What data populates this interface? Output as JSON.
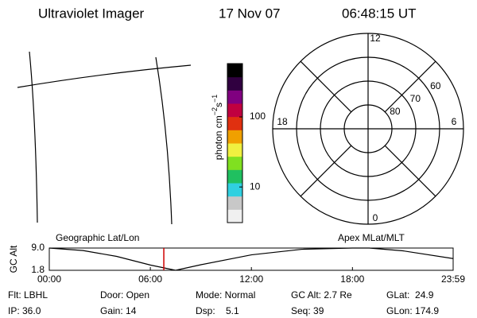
{
  "header": {
    "title": "Ultraviolet Imager",
    "date": "17 Nov 07",
    "time": "06:48:15 UT"
  },
  "colorbar": {
    "unit": {
      "base": "photon cm",
      "exp1": "−2",
      "mid": "s",
      "exp2": "−1"
    },
    "lim": [
      3.1,
      577
    ],
    "log": true,
    "ticks": [
      10,
      100
    ],
    "colors": [
      "#f0f0f0",
      "#c8c8c8",
      "#30d0e0",
      "#20c060",
      "#80e020",
      "#f0f040",
      "#f0a000",
      "#e03010",
      "#c00040",
      "#800080",
      "#300040",
      "#000000"
    ]
  },
  "polar": {
    "lat_lim": [
      90,
      50
    ],
    "rings": [
      60,
      70,
      80
    ],
    "mlt_labels": [
      12,
      18,
      6,
      0
    ]
  },
  "timeline": {
    "left_label": "Geographic Lat/Lon",
    "right_label": "Apex MLat/MLT",
    "ylabel": "GC Alt",
    "ylim": [
      1.8,
      9.0
    ],
    "yticks": [
      {
        "value": 9.0,
        "label": "9.0"
      },
      {
        "value": 1.8,
        "label": "1.8"
      }
    ],
    "xlim": [
      0,
      23.98
    ],
    "xticks": [
      {
        "value": 0,
        "label": "00:00"
      },
      {
        "value": 6,
        "label": "06:00"
      },
      {
        "value": 12,
        "label": "12:00"
      },
      {
        "value": 18,
        "label": "18:00"
      },
      {
        "value": 23.98,
        "label": "23:59"
      }
    ],
    "x": [
      0,
      2,
      4,
      6,
      7.5,
      9,
      12,
      15,
      18,
      19,
      21,
      23.98
    ],
    "values": [
      9.0,
      8.2,
      6.3,
      3.5,
      1.8,
      3.6,
      6.8,
      8.6,
      9.0,
      9.0,
      8.1,
      5.6
    ],
    "marker": 6.8,
    "marker_color": "#d00000"
  },
  "info": [
    [
      "Flt: LBHL",
      "Door: Open",
      "Mode: Normal",
      "GC Alt: 2.7 Re",
      "GLat:  24.9"
    ],
    [
      "IP: 36.0",
      "Gain: 14",
      "Dsp:    5.1",
      "Seq: 39",
      "GLon: 174.9"
    ]
  ]
}
